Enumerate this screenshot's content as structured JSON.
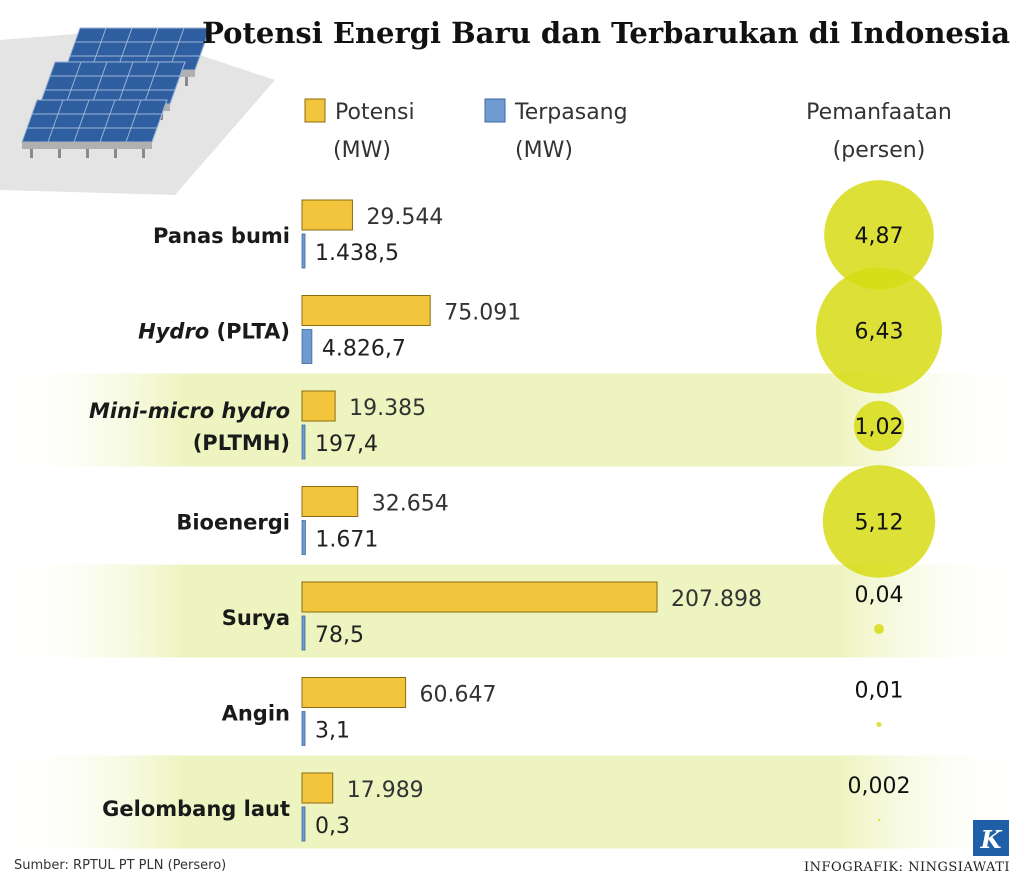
{
  "title": "Potensi Energi Baru dan Terbarukan di Indonesia",
  "legend": {
    "potensi_line1": "Potensi",
    "potensi_line2": "(MW)",
    "terpasang_line1": "Terpasang",
    "terpasang_line2": "(MW)",
    "pemanfaatan_line1": "Pemanfaatan",
    "pemanfaatan_line2": "(persen)"
  },
  "source": "Sumber: RPTUL PT PLN (Persero)",
  "credit": "INFOGRAFIK: NINGSIAWATI",
  "logo_letter": "K",
  "colors": {
    "potensi": "#f2c53d",
    "potensi_stroke": "#8a6d12",
    "terpasang": "#6f9bd1",
    "terpasang_stroke": "#3f6a9e",
    "bubble": "#d7dc14",
    "band": "#eef4bf",
    "logo_bg": "#1f5fa8",
    "panel_bg": "#e4e4e4"
  },
  "icon": "solar-panel-icon",
  "chart_data": {
    "type": "bar",
    "orientation": "horizontal",
    "title": "Potensi Energi Baru dan Terbarukan di Indonesia",
    "categories": [
      {
        "label": "Panas bumi",
        "italic_part": "",
        "rest": "Panas bumi",
        "line2": ""
      },
      {
        "label": "Hydro (PLTA)",
        "italic_part": "Hydro",
        "rest": " (PLTA)",
        "line2": ""
      },
      {
        "label": "Mini-micro hydro (PLTMH)",
        "italic_part": "Mini-micro hydro",
        "rest": "",
        "line2": "(PLTMH)"
      },
      {
        "label": "Bioenergi",
        "italic_part": "",
        "rest": "Bioenergi",
        "line2": ""
      },
      {
        "label": "Surya",
        "italic_part": "",
        "rest": "Surya",
        "line2": ""
      },
      {
        "label": "Angin",
        "italic_part": "",
        "rest": "Angin",
        "line2": ""
      },
      {
        "label": "Gelombang laut",
        "italic_part": "",
        "rest": "Gelombang laut",
        "line2": ""
      }
    ],
    "series": [
      {
        "name": "Potensi (MW)",
        "values": [
          29544,
          75091,
          19385,
          32654,
          207898,
          60647,
          17989
        ],
        "labels": [
          "29.544",
          "75.091",
          "19.385",
          "32.654",
          "207.898",
          "60.647",
          "17.989"
        ]
      },
      {
        "name": "Terpasang (MW)",
        "values": [
          1438.5,
          4826.7,
          197.4,
          1671,
          78.5,
          3.1,
          0.3
        ],
        "labels": [
          "1.438,5",
          "4.826,7",
          "197,4",
          "1.671",
          "78,5",
          "3,1",
          "0,3"
        ]
      },
      {
        "name": "Pemanfaatan (persen)",
        "values": [
          4.87,
          6.43,
          1.02,
          5.12,
          0.04,
          0.01,
          0.002
        ],
        "labels": [
          "4,87",
          "6,43",
          "1,02",
          "5,12",
          "0,04",
          "0,01",
          "0,002"
        ]
      }
    ],
    "alternating_bands": [
      false,
      true,
      false,
      true,
      false,
      true,
      false
    ]
  }
}
